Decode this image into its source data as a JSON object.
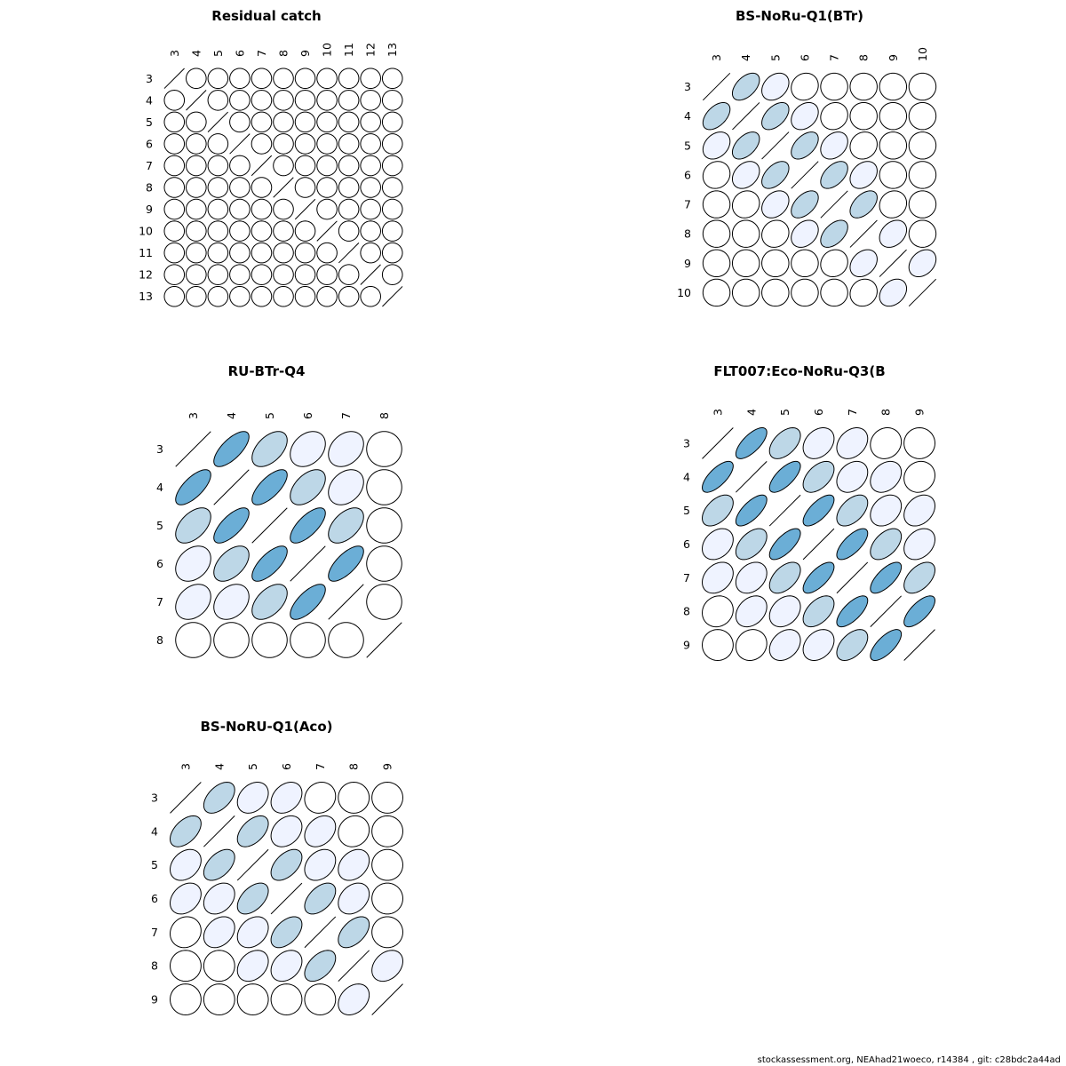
{
  "colors": {
    "level0": "#ffffff",
    "level1": "#eff3ff",
    "level2": "#bdd7e7",
    "level3": "#6baed6",
    "stroke": "#000000"
  },
  "footer": "stockassessment.org, NEAhad21woeco, r14384 , git: c28bdc2a44ad",
  "chart_data": [
    {
      "type": "heatmap",
      "title": "Residual catch",
      "labels": [
        "3",
        "4",
        "5",
        "6",
        "7",
        "8",
        "9",
        "10",
        "11",
        "12",
        "13"
      ],
      "matrix": [
        [
          1,
          0,
          0,
          0,
          0,
          0,
          0,
          0,
          0,
          0,
          0
        ],
        [
          0,
          1,
          0,
          0,
          0,
          0,
          0,
          0,
          0,
          0,
          0
        ],
        [
          0,
          0,
          1,
          0,
          0,
          0,
          0,
          0,
          0,
          0,
          0
        ],
        [
          0,
          0,
          0,
          1,
          0,
          0,
          0,
          0,
          0,
          0,
          0
        ],
        [
          0,
          0,
          0,
          0,
          1,
          0,
          0,
          0,
          0,
          0,
          0
        ],
        [
          0,
          0,
          0,
          0,
          0,
          1,
          0,
          0,
          0,
          0,
          0
        ],
        [
          0,
          0,
          0,
          0,
          0,
          0,
          1,
          0,
          0,
          0,
          0
        ],
        [
          0,
          0,
          0,
          0,
          0,
          0,
          0,
          1,
          0,
          0,
          0
        ],
        [
          0,
          0,
          0,
          0,
          0,
          0,
          0,
          0,
          1,
          0,
          0
        ],
        [
          0,
          0,
          0,
          0,
          0,
          0,
          0,
          0,
          0,
          1,
          0
        ],
        [
          0,
          0,
          0,
          0,
          0,
          0,
          0,
          0,
          0,
          0,
          1
        ]
      ]
    },
    {
      "type": "heatmap",
      "title": "BS-NoRu-Q1(BTr)",
      "labels": [
        "3",
        "4",
        "5",
        "6",
        "7",
        "8",
        "9",
        "10"
      ],
      "matrix": [
        [
          1,
          0.5,
          0.3,
          0.1,
          0,
          0,
          0,
          0
        ],
        [
          0.5,
          1,
          0.5,
          0.3,
          0.1,
          0,
          0,
          0
        ],
        [
          0.3,
          0.5,
          1,
          0.5,
          0.3,
          0.1,
          0,
          0
        ],
        [
          0.1,
          0.3,
          0.5,
          1,
          0.5,
          0.3,
          0,
          0
        ],
        [
          0,
          0.1,
          0.3,
          0.5,
          1,
          0.5,
          0.1,
          0
        ],
        [
          0,
          0,
          0.1,
          0.3,
          0.5,
          1,
          0.3,
          0
        ],
        [
          0,
          0,
          0,
          0,
          0.1,
          0.3,
          1,
          0.3
        ],
        [
          0,
          0,
          0,
          0,
          0,
          0.1,
          0.3,
          1
        ]
      ]
    },
    {
      "type": "heatmap",
      "title": "RU-BTr-Q4",
      "labels": [
        "3",
        "4",
        "5",
        "6",
        "7",
        "8"
      ],
      "matrix": [
        [
          1,
          0.7,
          0.5,
          0.3,
          0.3,
          0
        ],
        [
          0.7,
          1,
          0.7,
          0.5,
          0.3,
          0
        ],
        [
          0.5,
          0.7,
          1,
          0.7,
          0.5,
          0
        ],
        [
          0.3,
          0.5,
          0.7,
          1,
          0.7,
          0
        ],
        [
          0.3,
          0.3,
          0.5,
          0.7,
          1,
          0
        ],
        [
          0,
          0,
          0,
          0,
          0,
          1
        ]
      ]
    },
    {
      "type": "heatmap",
      "title": "FLT007:Eco-NoRu-Q3(B",
      "labels": [
        "3",
        "4",
        "5",
        "6",
        "7",
        "8",
        "9"
      ],
      "matrix": [
        [
          1,
          0.7,
          0.5,
          0.3,
          0.3,
          0.1,
          0
        ],
        [
          0.7,
          1,
          0.7,
          0.5,
          0.3,
          0.3,
          0.1
        ],
        [
          0.5,
          0.7,
          1,
          0.7,
          0.5,
          0.3,
          0.3
        ],
        [
          0.3,
          0.5,
          0.7,
          1,
          0.7,
          0.5,
          0.3
        ],
        [
          0.3,
          0.3,
          0.5,
          0.7,
          1,
          0.7,
          0.5
        ],
        [
          0.1,
          0.3,
          0.3,
          0.5,
          0.7,
          1,
          0.7
        ],
        [
          0,
          0.1,
          0.3,
          0.3,
          0.5,
          0.7,
          1
        ]
      ]
    },
    {
      "type": "heatmap",
      "title": "BS-NoRU-Q1(Aco)",
      "labels": [
        "3",
        "4",
        "5",
        "6",
        "7",
        "8",
        "9"
      ],
      "matrix": [
        [
          1,
          0.5,
          0.3,
          0.3,
          0.1,
          0,
          0
        ],
        [
          0.5,
          1,
          0.5,
          0.3,
          0.3,
          0.1,
          0
        ],
        [
          0.3,
          0.5,
          1,
          0.5,
          0.3,
          0.3,
          0
        ],
        [
          0.3,
          0.3,
          0.5,
          1,
          0.5,
          0.3,
          0
        ],
        [
          0.1,
          0.3,
          0.3,
          0.5,
          1,
          0.5,
          0
        ],
        [
          0,
          0,
          0.3,
          0.3,
          0.5,
          1,
          0.3
        ],
        [
          0,
          0,
          0,
          0,
          0,
          0.3,
          1
        ]
      ]
    }
  ]
}
